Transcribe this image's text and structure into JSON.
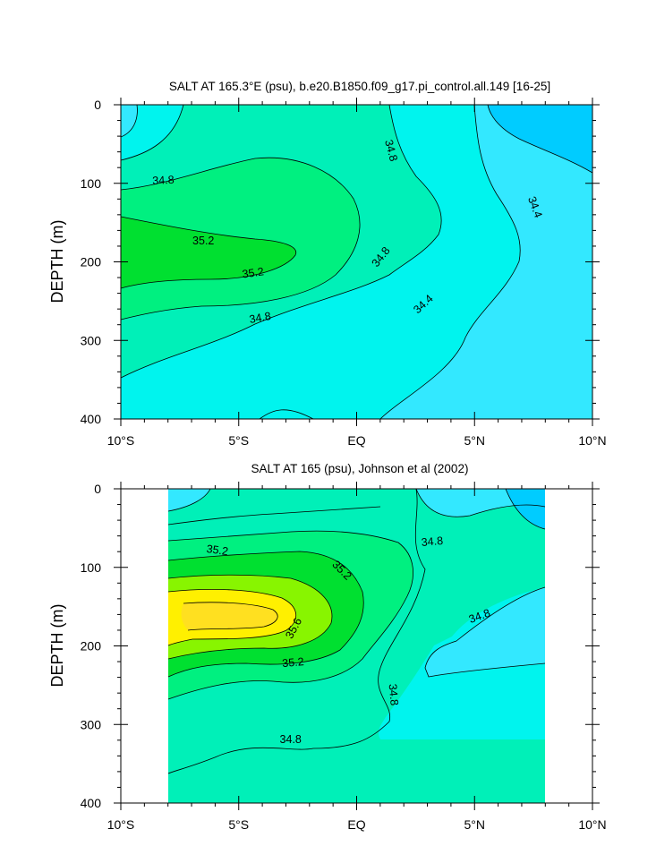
{
  "chart_data": [
    {
      "type": "contour",
      "title": "SALT AT 165.3°E (psu), b.e20.B1850.f09_g17.pi_control.all.149 [16-25]",
      "ylabel": "DEPTH (m)",
      "xlim": [
        -10,
        10
      ],
      "ylim": [
        400,
        0
      ],
      "x_ticks": [
        {
          "value": -10,
          "label": "10°S"
        },
        {
          "value": -5,
          "label": "5°S"
        },
        {
          "value": 0,
          "label": "EQ"
        },
        {
          "value": 5,
          "label": "5°N"
        },
        {
          "value": 10,
          "label": "10°N"
        }
      ],
      "y_ticks": [
        0,
        100,
        200,
        300,
        400
      ],
      "fill_colors": {
        "34.2": "#00ccff",
        "34.4": "#33e8ff",
        "34.6": "#00f4ee",
        "34.8": "#00f0b8",
        "35.0": "#00f080",
        "35.2": "#00e030"
      },
      "contour_labels": [
        {
          "text": "34.8",
          "x": -8.2,
          "y": 95,
          "angle": -3
        },
        {
          "text": "35.2",
          "x": -6.5,
          "y": 172,
          "angle": 0
        },
        {
          "text": "35.2",
          "x": -4.4,
          "y": 213,
          "angle": -8
        },
        {
          "text": "34.8",
          "x": -4.1,
          "y": 270,
          "angle": -10
        },
        {
          "text": "34.8",
          "x": 1.5,
          "y": 58,
          "angle": 75
        },
        {
          "text": "34.8",
          "x": 1.0,
          "y": 193,
          "angle": -52
        },
        {
          "text": "34.4",
          "x": 2.8,
          "y": 253,
          "angle": -42
        },
        {
          "text": "34.4",
          "x": 7.6,
          "y": 130,
          "angle": 70
        }
      ]
    },
    {
      "type": "contour",
      "title": "SALT AT 165 (psu), Johnson et al (2002)",
      "ylabel": "DEPTH (m)",
      "xlim": [
        -10,
        10
      ],
      "ylim": [
        400,
        0
      ],
      "data_xlim": [
        -8,
        8
      ],
      "x_ticks": [
        {
          "value": -10,
          "label": "10°S"
        },
        {
          "value": -5,
          "label": "5°S"
        },
        {
          "value": 0,
          "label": "EQ"
        },
        {
          "value": 5,
          "label": "5°N"
        },
        {
          "value": 10,
          "label": "10°N"
        }
      ],
      "y_ticks": [
        0,
        100,
        200,
        300,
        400
      ],
      "fill_colors": {
        "34.2": "#00ccff",
        "34.4": "#33e8ff",
        "34.6": "#00f4ee",
        "34.8": "#00f0b8",
        "35.0": "#00f080",
        "35.2": "#00e030",
        "35.4": "#88f500",
        "35.6": "#fff000",
        "35.8": "#ffe020"
      },
      "contour_labels": [
        {
          "text": "35.2",
          "x": -5.9,
          "y": 77,
          "angle": 8
        },
        {
          "text": "35.2",
          "x": -0.6,
          "y": 103,
          "angle": 45
        },
        {
          "text": "35.6",
          "x": -2.7,
          "y": 177,
          "angle": -62
        },
        {
          "text": "35.2",
          "x": -2.7,
          "y": 220,
          "angle": -5
        },
        {
          "text": "34.8",
          "x": 3.2,
          "y": 66,
          "angle": -5
        },
        {
          "text": "34.8",
          "x": 5.2,
          "y": 161,
          "angle": -20
        },
        {
          "text": "34.8",
          "x": 1.6,
          "y": 262,
          "angle": 85
        },
        {
          "text": "34.8",
          "x": -2.8,
          "y": 318,
          "angle": 0
        }
      ]
    }
  ]
}
